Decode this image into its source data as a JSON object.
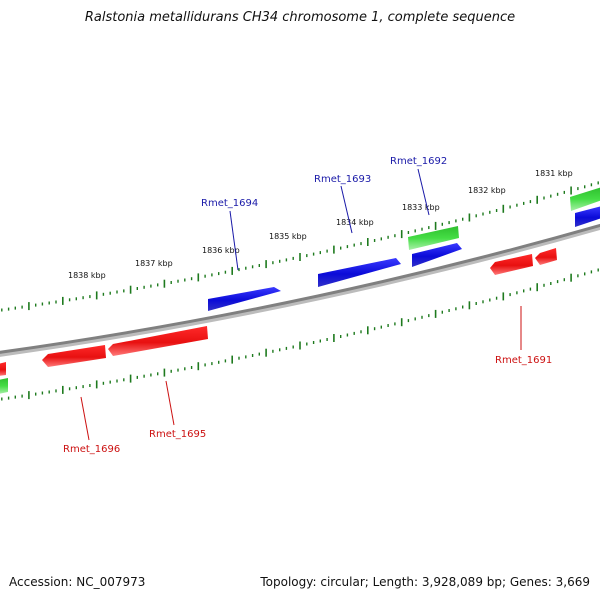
{
  "title": "Ralstonia metallidurans CH34 chromosome 1, complete sequence",
  "footer": {
    "accession": "Accession: NC_007973",
    "summary": "Topology: circular; Length: 3,928,089 bp; Genes: 3,669"
  },
  "colors": {
    "backbone": "#8a8a8a",
    "tick": "#1e7a1e",
    "forward_gene": "#1010e0",
    "reverse_gene": "#ee1111",
    "other_gene": "#33cc33",
    "forward_label": "#1a1aa8",
    "reverse_label": "#cc1111"
  },
  "kbp_labels": [
    "1838 kbp",
    "1837 kbp",
    "1836 kbp",
    "1835 kbp",
    "1834 kbp",
    "1833 kbp",
    "1832 kbp",
    "1831 kbp"
  ],
  "gene_labels": {
    "rmet_1691": "Rmet_1691",
    "rmet_1692": "Rmet_1692",
    "rmet_1693": "Rmet_1693",
    "rmet_1694": "Rmet_1694",
    "rmet_1695": "Rmet_1695",
    "rmet_1696": "Rmet_1696"
  }
}
